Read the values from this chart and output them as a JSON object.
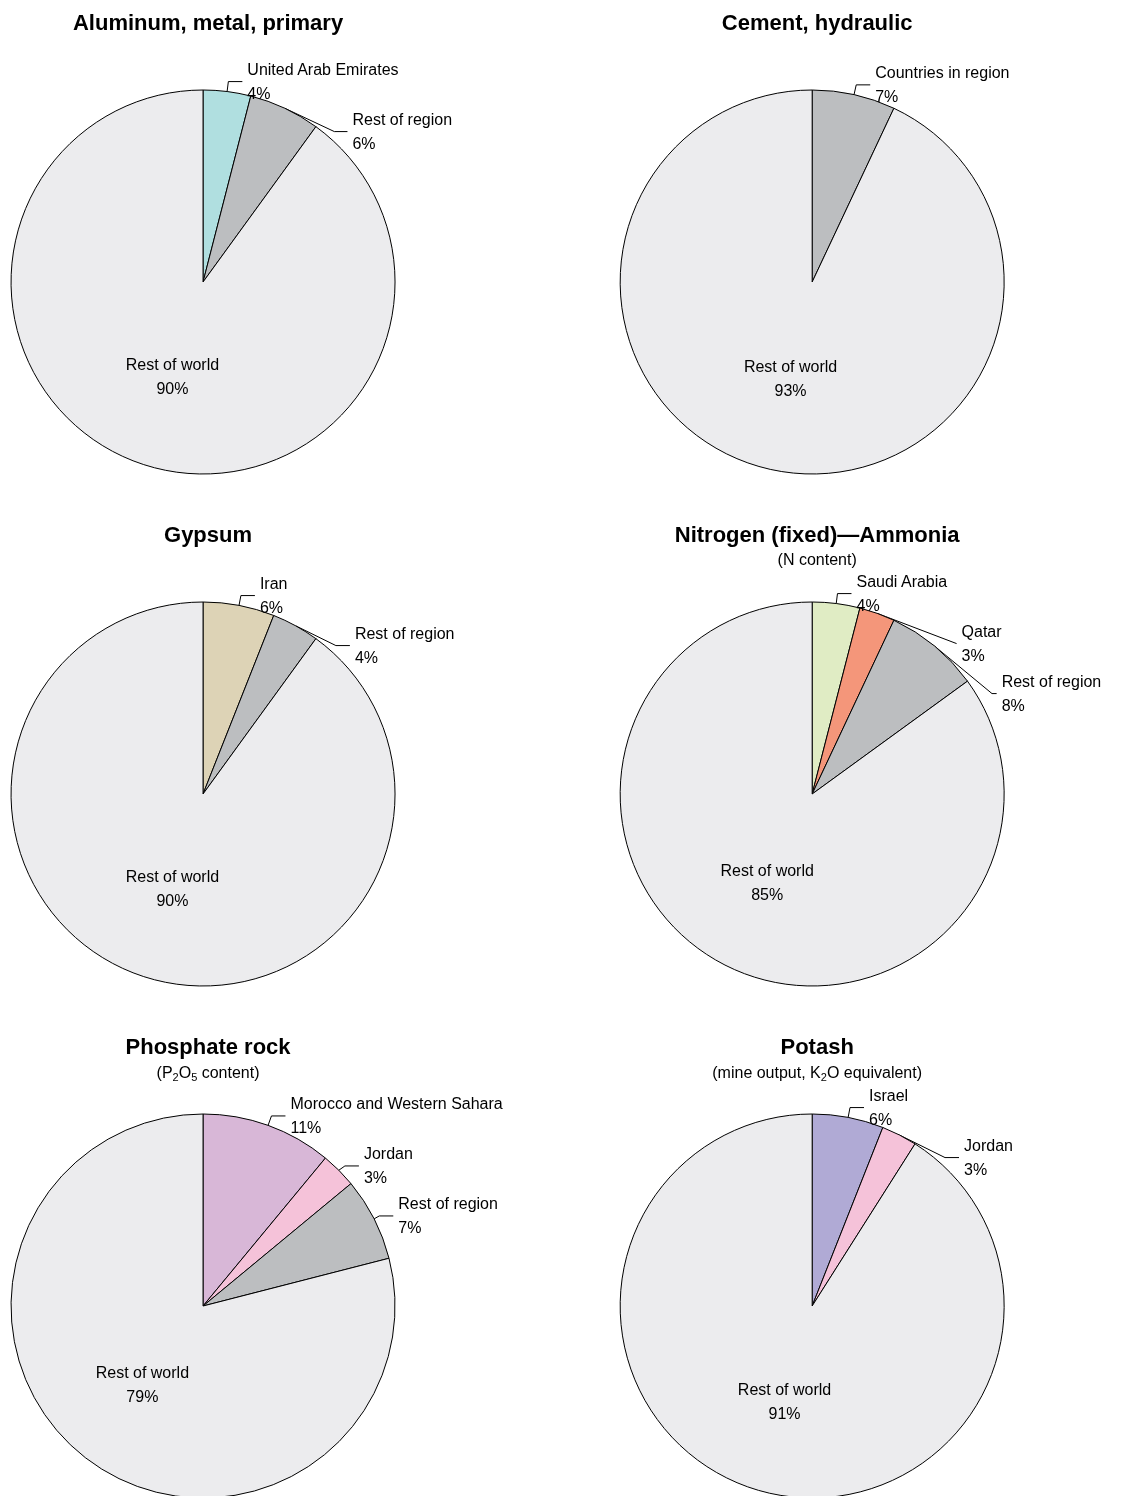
{
  "chart_data": [
    {
      "type": "pie",
      "title": "Aluminum, metal, primary",
      "categories": [
        "United Arab Emirates",
        "Rest of region",
        "Rest of world"
      ],
      "values": [
        4,
        6,
        90
      ],
      "value_labels": [
        "4%",
        "6%",
        "90%"
      ],
      "colors": [
        "#b0dfe0",
        "#bcbec0",
        "#ececee"
      ],
      "legend": false
    },
    {
      "type": "pie",
      "title": "Cement, hydraulic",
      "categories": [
        "Countries in region",
        "Rest of world"
      ],
      "values": [
        7,
        93
      ],
      "value_labels": [
        "7%",
        "93%"
      ],
      "colors": [
        "#bcbec0",
        "#ececee"
      ],
      "legend": false
    },
    {
      "type": "pie",
      "title": "Gypsum",
      "categories": [
        "Iran",
        "Rest of region",
        "Rest of world"
      ],
      "values": [
        6,
        4,
        90
      ],
      "value_labels": [
        "6%",
        "4%",
        "90%"
      ],
      "colors": [
        "#ddd3b6",
        "#bcbec0",
        "#ececee"
      ],
      "legend": false
    },
    {
      "type": "pie",
      "title": "Nitrogen (fixed)—Ammonia",
      "subtitle": "(N content)",
      "categories": [
        "Saudi Arabia",
        "Qatar",
        "Rest of region",
        "Rest of world"
      ],
      "values": [
        4,
        3,
        8,
        85
      ],
      "value_labels": [
        "4%",
        "3%",
        "8%",
        "85%"
      ],
      "colors": [
        "#e0ecc4",
        "#f4967a",
        "#bcbec0",
        "#ececee"
      ],
      "legend": false
    },
    {
      "type": "pie",
      "title": "Phosphate rock",
      "subtitle": "(P$_{2}$O$_{5}$ content)",
      "categories": [
        "Morocco and Western Sahara",
        "Jordan",
        "Rest of region",
        "Rest of world"
      ],
      "values": [
        11,
        3,
        7,
        79
      ],
      "value_labels": [
        "11%",
        "3%",
        "7%",
        "79%"
      ],
      "colors": [
        "#d8b7d7",
        "#f5c2d9",
        "#bcbec0",
        "#ececee"
      ],
      "legend": false
    },
    {
      "type": "pie",
      "title": "Potash",
      "subtitle": "(mine output, K$_{2}$O equivalent)",
      "categories": [
        "Israel",
        "Jordan",
        "Rest of world"
      ],
      "values": [
        6,
        3,
        91
      ],
      "value_labels": [
        "6%",
        "3%",
        "91%"
      ],
      "colors": [
        "#b0aad5",
        "#f5c2d9",
        "#ececee"
      ],
      "legend": false
    }
  ]
}
